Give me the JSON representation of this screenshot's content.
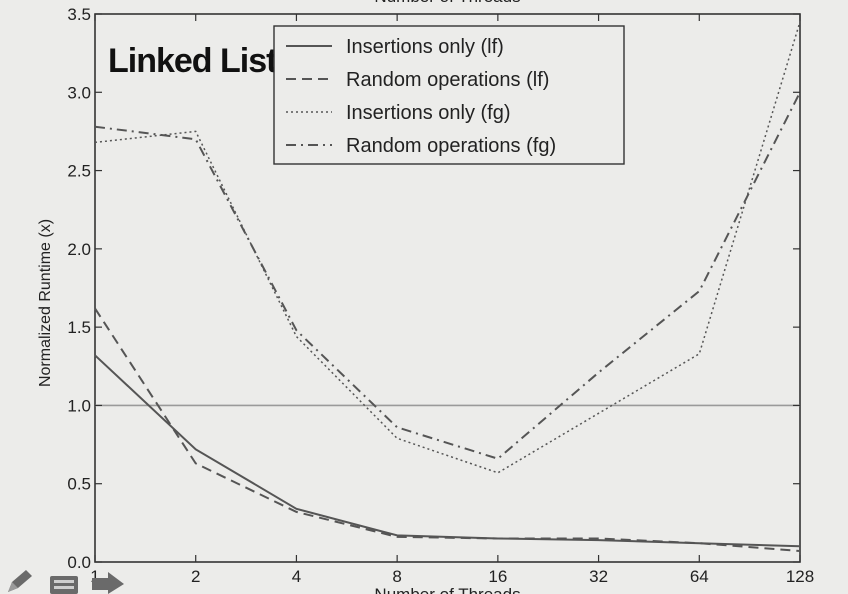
{
  "chart_data": {
    "type": "line",
    "annotation": "Linked List",
    "xlabel_top": "Number of Threads",
    "xlabel": "Number of Threads",
    "ylabel": "Normalized Runtime (x)",
    "x": [
      1,
      2,
      4,
      8,
      16,
      32,
      64,
      128
    ],
    "x_tick_labels": [
      "1",
      "2",
      "4",
      "8",
      "16",
      "32",
      "64",
      "128"
    ],
    "x_scale": "log2",
    "ylim": [
      0.0,
      3.5
    ],
    "y_ticks": [
      0.0,
      0.5,
      1.0,
      1.5,
      2.0,
      2.5,
      3.0,
      3.5
    ],
    "y_tick_labels": [
      "0.0",
      "0.5",
      "1.0",
      "1.5",
      "2.0",
      "2.5",
      "3.0",
      "3.5"
    ],
    "reference_line_y": 1.0,
    "grid": false,
    "legend_position": "top-center",
    "series": [
      {
        "name": "Insertions only (lf)",
        "style": "solid",
        "values": [
          1.32,
          0.72,
          0.34,
          0.17,
          0.15,
          0.14,
          0.12,
          0.1
        ]
      },
      {
        "name": "Random operations (lf)",
        "style": "dashed",
        "values": [
          1.62,
          0.63,
          0.32,
          0.16,
          0.15,
          0.15,
          0.12,
          0.07
        ]
      },
      {
        "name": "Insertions only (fg)",
        "style": "dotted",
        "values": [
          2.68,
          2.75,
          1.44,
          0.79,
          0.57,
          0.95,
          1.33,
          3.45
        ]
      },
      {
        "name": "Random operations (fg)",
        "style": "dashdot",
        "values": [
          2.78,
          2.7,
          1.48,
          0.86,
          0.66,
          1.21,
          1.73,
          3.0
        ]
      }
    ],
    "colors": {
      "line": "#555555",
      "axis": "#333333",
      "text": "#222222",
      "background": "#ececea",
      "reference_line": "#9a9a9a"
    }
  },
  "toolbar_icons": [
    "pencil-icon",
    "slide-icon",
    "arrow-right-icon"
  ]
}
